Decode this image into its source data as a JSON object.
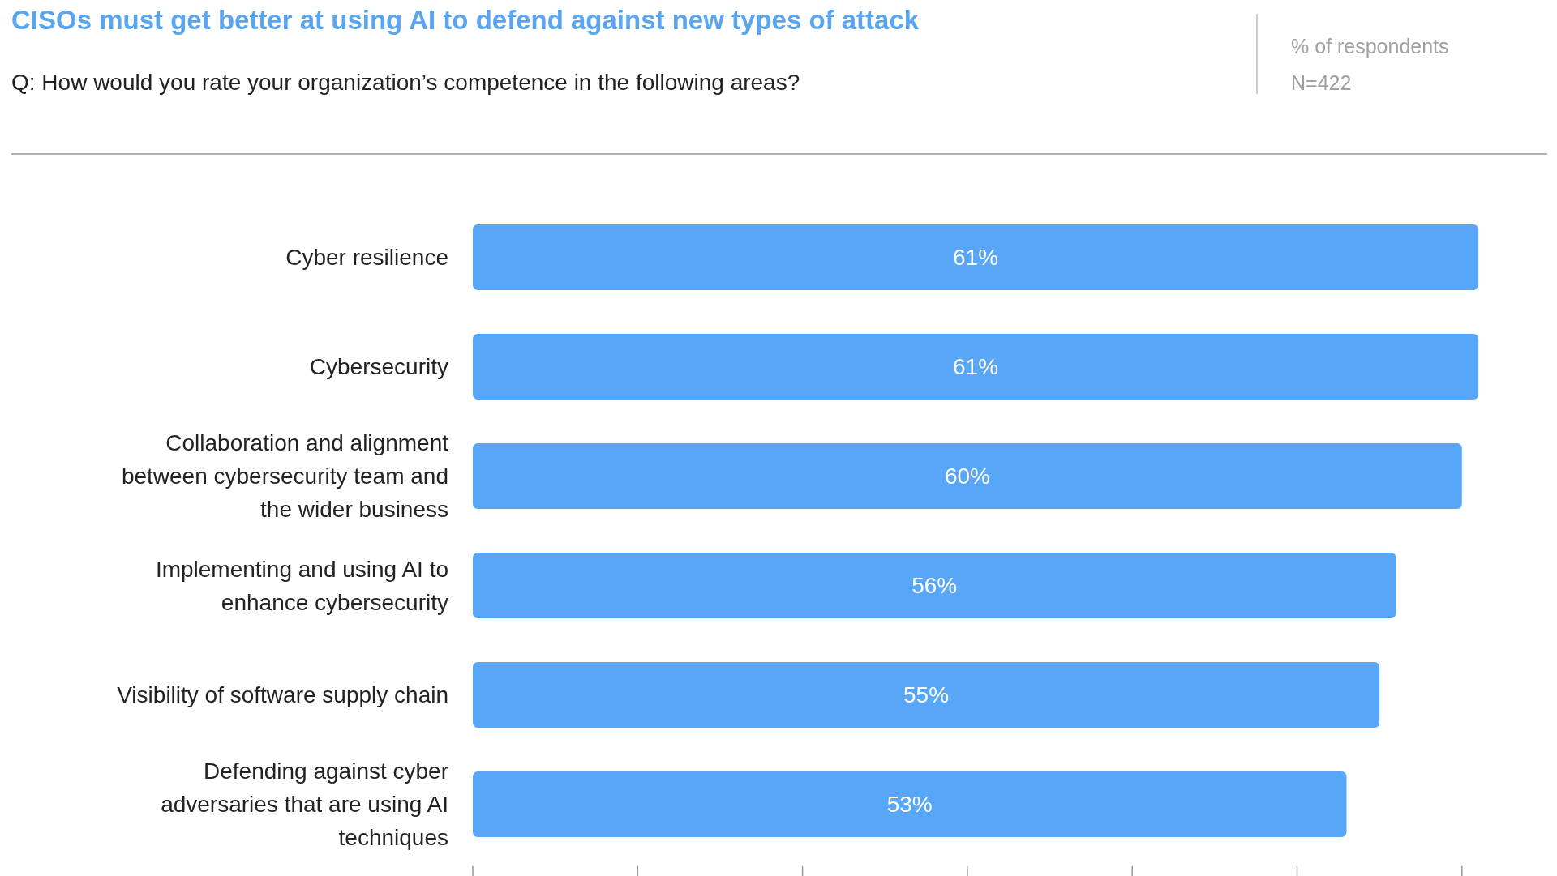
{
  "chart_data": {
    "type": "bar",
    "orientation": "horizontal",
    "title": "CISOs must get better at using AI to defend against new types of attack",
    "subtitle": "Q:  How would you rate your organization’s competence in the following areas?",
    "annotations": [
      "% of respondents",
      "N=422"
    ],
    "categories": [
      "Cyber resilience",
      "Cybersecurity",
      "Collaboration and alignment\nbetween cybersecurity team and\nthe wider business",
      "Implementing and using AI to\nenhance cybersecurity",
      "Visibility of software supply chain",
      "Defending against cyber\nadversaries that are using AI\ntechniques"
    ],
    "values": [
      61,
      61,
      60,
      56,
      55,
      53
    ],
    "value_labels": [
      "61%",
      "61%",
      "60%",
      "56%",
      "55%",
      "53%"
    ],
    "color": "#58a6f8",
    "xticks": [
      {
        "value": 0,
        "label": null
      },
      {
        "value": 10,
        "label": null
      },
      {
        "value": 20,
        "label": null
      },
      {
        "value": 30,
        "label": null
      },
      {
        "value": 40,
        "label": null
      },
      {
        "value": 50,
        "label": null
      },
      {
        "value": 60,
        "label": null
      }
    ],
    "tick_labels": "y",
    "grid": false
  }
}
